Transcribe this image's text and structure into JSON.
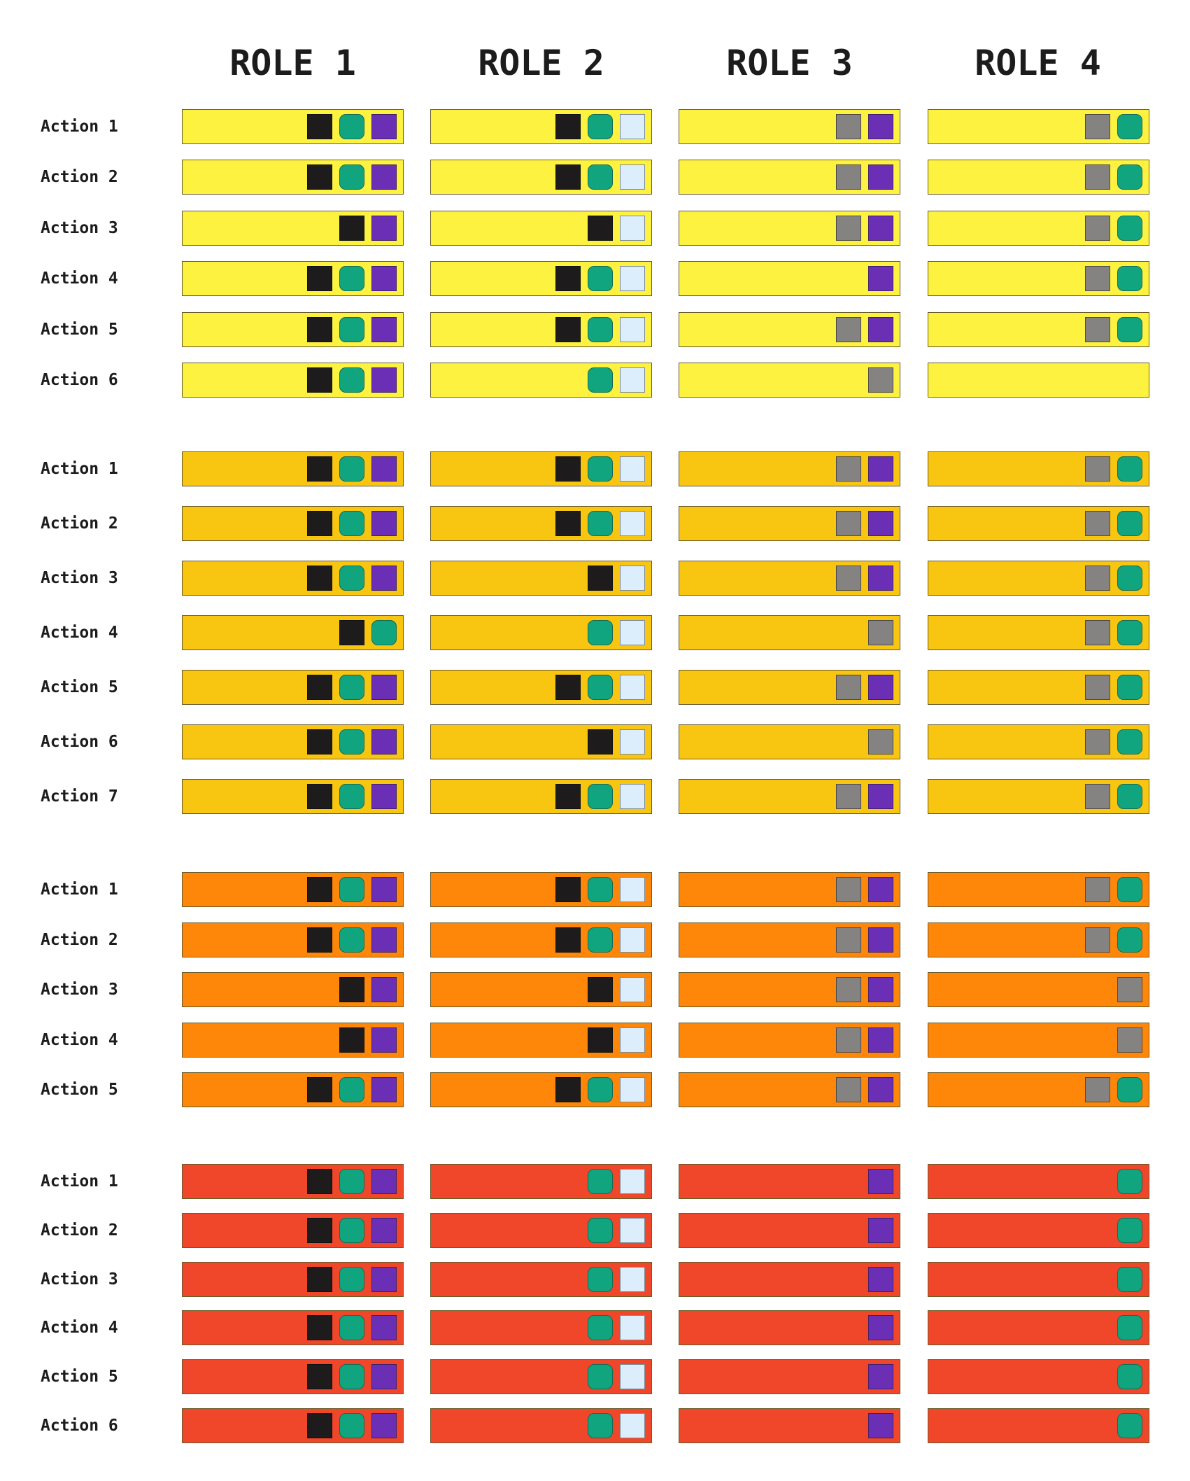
{
  "roles": [
    "ROLE 1",
    "ROLE 2",
    "ROLE 3",
    "ROLE 4"
  ],
  "icon_colors": {
    "black": "#1d1b1b",
    "green": "#11a57f",
    "purple": "#6a2fb5",
    "light": "#dceefc",
    "gray": "#858382"
  },
  "groups": [
    {
      "color": "#fdf23f",
      "rows": [
        {
          "label": "Action 1",
          "cells": [
            [
              "black",
              "green",
              "purple"
            ],
            [
              "black",
              "green",
              "light"
            ],
            [
              "gray",
              "purple"
            ],
            [
              "gray",
              "green"
            ]
          ]
        },
        {
          "label": "Action 2",
          "cells": [
            [
              "black",
              "green",
              "purple"
            ],
            [
              "black",
              "green",
              "light"
            ],
            [
              "gray",
              "purple"
            ],
            [
              "gray",
              "green"
            ]
          ]
        },
        {
          "label": "Action 3",
          "cells": [
            [
              "black",
              "purple"
            ],
            [
              "black",
              "light"
            ],
            [
              "gray",
              "purple"
            ],
            [
              "gray",
              "green"
            ]
          ]
        },
        {
          "label": "Action 4",
          "cells": [
            [
              "black",
              "green",
              "purple"
            ],
            [
              "black",
              "green",
              "light"
            ],
            [
              "purple"
            ],
            [
              "gray",
              "green"
            ]
          ]
        },
        {
          "label": "Action 5",
          "cells": [
            [
              "black",
              "green",
              "purple"
            ],
            [
              "black",
              "green",
              "light"
            ],
            [
              "gray",
              "purple"
            ],
            [
              "gray",
              "green"
            ]
          ]
        },
        {
          "label": "Action 6",
          "cells": [
            [
              "black",
              "green",
              "purple"
            ],
            [
              "green",
              "light"
            ],
            [
              "gray"
            ],
            []
          ]
        }
      ]
    },
    {
      "color": "#f8c511",
      "rows": [
        {
          "label": "Action 1",
          "cells": [
            [
              "black",
              "green",
              "purple"
            ],
            [
              "black",
              "green",
              "light"
            ],
            [
              "gray",
              "purple"
            ],
            [
              "gray",
              "green"
            ]
          ]
        },
        {
          "label": "Action 2",
          "cells": [
            [
              "black",
              "green",
              "purple"
            ],
            [
              "black",
              "green",
              "light"
            ],
            [
              "gray",
              "purple"
            ],
            [
              "gray",
              "green"
            ]
          ]
        },
        {
          "label": "Action 3",
          "cells": [
            [
              "black",
              "green",
              "purple"
            ],
            [
              "black",
              "light"
            ],
            [
              "gray",
              "purple"
            ],
            [
              "gray",
              "green"
            ]
          ]
        },
        {
          "label": "Action 4",
          "cells": [
            [
              "black",
              "green"
            ],
            [
              "green",
              "light"
            ],
            [
              "gray"
            ],
            [
              "gray",
              "green"
            ]
          ]
        },
        {
          "label": "Action 5",
          "cells": [
            [
              "black",
              "green",
              "purple"
            ],
            [
              "black",
              "green",
              "light"
            ],
            [
              "gray",
              "purple"
            ],
            [
              "gray",
              "green"
            ]
          ]
        },
        {
          "label": "Action 6",
          "cells": [
            [
              "black",
              "green",
              "purple"
            ],
            [
              "black",
              "light"
            ],
            [
              "gray"
            ],
            [
              "gray",
              "green"
            ]
          ]
        },
        {
          "label": "Action 7",
          "cells": [
            [
              "black",
              "green",
              "purple"
            ],
            [
              "black",
              "green",
              "light"
            ],
            [
              "gray",
              "purple"
            ],
            [
              "gray",
              "green"
            ]
          ]
        }
      ]
    },
    {
      "color": "#fe8608",
      "rows": [
        {
          "label": "Action 1",
          "cells": [
            [
              "black",
              "green",
              "purple"
            ],
            [
              "black",
              "green",
              "light"
            ],
            [
              "gray",
              "purple"
            ],
            [
              "gray",
              "green"
            ]
          ]
        },
        {
          "label": "Action 2",
          "cells": [
            [
              "black",
              "green",
              "purple"
            ],
            [
              "black",
              "green",
              "light"
            ],
            [
              "gray",
              "purple"
            ],
            [
              "gray",
              "green"
            ]
          ]
        },
        {
          "label": "Action 3",
          "cells": [
            [
              "black",
              "purple"
            ],
            [
              "black",
              "light"
            ],
            [
              "gray",
              "purple"
            ],
            [
              "gray"
            ]
          ]
        },
        {
          "label": "Action 4",
          "cells": [
            [
              "black",
              "purple"
            ],
            [
              "black",
              "light"
            ],
            [
              "gray",
              "purple"
            ],
            [
              "gray"
            ]
          ]
        },
        {
          "label": "Action 5",
          "cells": [
            [
              "black",
              "green",
              "purple"
            ],
            [
              "black",
              "green",
              "light"
            ],
            [
              "gray",
              "purple"
            ],
            [
              "gray",
              "green"
            ]
          ]
        }
      ]
    },
    {
      "color": "#f04629",
      "rows": [
        {
          "label": "Action 1",
          "cells": [
            [
              "black",
              "green",
              "purple"
            ],
            [
              "green",
              "light"
            ],
            [
              "purple"
            ],
            [
              "green"
            ]
          ]
        },
        {
          "label": "Action 2",
          "cells": [
            [
              "black",
              "green",
              "purple"
            ],
            [
              "green",
              "light"
            ],
            [
              "purple"
            ],
            [
              "green"
            ]
          ]
        },
        {
          "label": "Action 3",
          "cells": [
            [
              "black",
              "green",
              "purple"
            ],
            [
              "green",
              "light"
            ],
            [
              "purple"
            ],
            [
              "green"
            ]
          ]
        },
        {
          "label": "Action 4",
          "cells": [
            [
              "black",
              "green",
              "purple"
            ],
            [
              "green",
              "light"
            ],
            [
              "purple"
            ],
            [
              "green"
            ]
          ]
        },
        {
          "label": "Action 5",
          "cells": [
            [
              "black",
              "green",
              "purple"
            ],
            [
              "green",
              "light"
            ],
            [
              "purple"
            ],
            [
              "green"
            ]
          ]
        },
        {
          "label": "Action 6",
          "cells": [
            [
              "black",
              "green",
              "purple"
            ],
            [
              "green",
              "light"
            ],
            [
              "purple"
            ],
            [
              "green"
            ]
          ]
        }
      ]
    }
  ]
}
